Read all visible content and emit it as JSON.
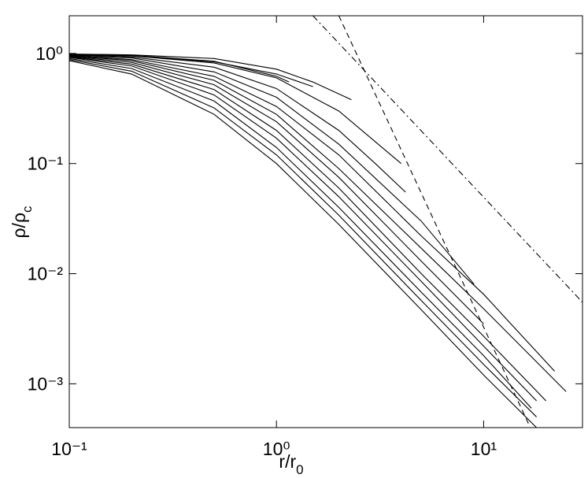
{
  "chart_data": {
    "type": "line",
    "xlabel": {
      "main": "r/r",
      "sub": "0"
    },
    "ylabel": {
      "main": "ρ/ρ",
      "sub": "c"
    },
    "log_x": true,
    "log_y": true,
    "xlim": [
      0.1,
      30
    ],
    "ylim": [
      0.0004,
      2.2
    ],
    "xticks": [
      {
        "value": 0.1,
        "label": "10⁻¹"
      },
      {
        "value": 1,
        "label": "10⁰"
      },
      {
        "value": 10,
        "label": "10¹"
      }
    ],
    "yticks": [
      {
        "value": 0.001,
        "label": "10⁻³"
      },
      {
        "value": 0.01,
        "label": "10⁻²"
      },
      {
        "value": 0.1,
        "label": "10⁻¹"
      },
      {
        "value": 1,
        "label": "10⁰"
      }
    ],
    "series": [
      {
        "color": "#000000",
        "linestyle": "solid",
        "x": [
          0.1,
          0.2,
          0.5,
          1,
          1.5,
          2.3
        ],
        "values": [
          0.99,
          0.97,
          0.9,
          0.72,
          0.55,
          0.38
        ]
      },
      {
        "color": "#000000",
        "linestyle": "solid",
        "x": [
          0.1,
          0.2,
          0.5,
          1,
          1.15
        ],
        "values": [
          0.98,
          0.96,
          0.85,
          0.62,
          0.55
        ]
      },
      {
        "color": "#000000",
        "linestyle": "solid",
        "x": [
          0.1,
          0.2,
          0.5,
          1,
          1.5
        ],
        "values": [
          0.98,
          0.95,
          0.84,
          0.65,
          0.5
        ]
      },
      {
        "color": "#000000",
        "linestyle": "solid",
        "x": [
          0.1,
          0.2,
          0.5,
          1,
          2,
          4
        ],
        "values": [
          0.98,
          0.95,
          0.82,
          0.6,
          0.3,
          0.1
        ]
      },
      {
        "color": "#000000",
        "linestyle": "solid",
        "x": [
          0.1,
          0.2,
          0.5,
          1,
          2,
          3,
          4.2
        ],
        "values": [
          0.97,
          0.93,
          0.75,
          0.48,
          0.2,
          0.1,
          0.055
        ]
      },
      {
        "color": "#000000",
        "linestyle": "solid",
        "x": [
          0.1,
          0.2,
          0.5,
          1,
          2,
          5,
          9
        ],
        "values": [
          0.97,
          0.91,
          0.68,
          0.4,
          0.15,
          0.03,
          0.008
        ]
      },
      {
        "color": "#000000",
        "linestyle": "solid",
        "x": [
          0.1,
          0.2,
          0.5,
          1,
          2,
          5,
          10,
          22
        ],
        "values": [
          0.96,
          0.88,
          0.62,
          0.33,
          0.12,
          0.022,
          0.0065,
          0.0013
        ]
      },
      {
        "color": "#000000",
        "linestyle": "solid",
        "x": [
          0.1,
          0.2,
          0.5,
          1,
          2,
          5,
          10,
          25
        ],
        "values": [
          0.95,
          0.86,
          0.57,
          0.28,
          0.09,
          0.017,
          0.0048,
          0.00085
        ]
      },
      {
        "color": "#000000",
        "linestyle": "solid",
        "x": [
          0.1,
          0.2,
          0.5,
          1,
          2,
          5,
          10
        ],
        "values": [
          0.94,
          0.83,
          0.52,
          0.24,
          0.075,
          0.013,
          0.0035
        ]
      },
      {
        "color": "#000000",
        "linestyle": "solid",
        "x": [
          0.1,
          0.2,
          0.5,
          1,
          2,
          5,
          10,
          20
        ],
        "values": [
          0.93,
          0.8,
          0.47,
          0.2,
          0.06,
          0.01,
          0.0027,
          0.0007
        ]
      },
      {
        "color": "#000000",
        "linestyle": "solid",
        "x": [
          0.1,
          0.2,
          0.5,
          1,
          2,
          5,
          10,
          18
        ],
        "values": [
          0.92,
          0.77,
          0.42,
          0.17,
          0.05,
          0.0085,
          0.0022,
          0.0007
        ]
      },
      {
        "color": "#000000",
        "linestyle": "solid",
        "x": [
          0.1,
          0.2,
          0.5,
          1,
          2,
          5,
          10,
          17
        ],
        "values": [
          0.9,
          0.73,
          0.37,
          0.14,
          0.04,
          0.0068,
          0.0018,
          0.0006
        ]
      },
      {
        "color": "#000000",
        "linestyle": "solid",
        "x": [
          0.1,
          0.2,
          0.5,
          1,
          2,
          5,
          10,
          18
        ],
        "values": [
          0.88,
          0.69,
          0.32,
          0.12,
          0.034,
          0.0057,
          0.0015,
          0.0005
        ]
      },
      {
        "color": "#000000",
        "linestyle": "solid",
        "x": [
          0.1,
          0.2,
          0.5,
          1,
          2,
          5,
          10,
          18
        ],
        "values": [
          0.86,
          0.65,
          0.28,
          0.1,
          0.028,
          0.0047,
          0.0012,
          0.0004
        ]
      },
      {
        "color": "#000000",
        "linestyle": "dashdot",
        "x": [
          1.5,
          30
        ],
        "values": [
          2.2,
          0.0055
        ]
      },
      {
        "color": "#000000",
        "linestyle": "dashed",
        "x": [
          2,
          16.6
        ],
        "values": [
          2.2,
          0.00042
        ]
      }
    ]
  }
}
